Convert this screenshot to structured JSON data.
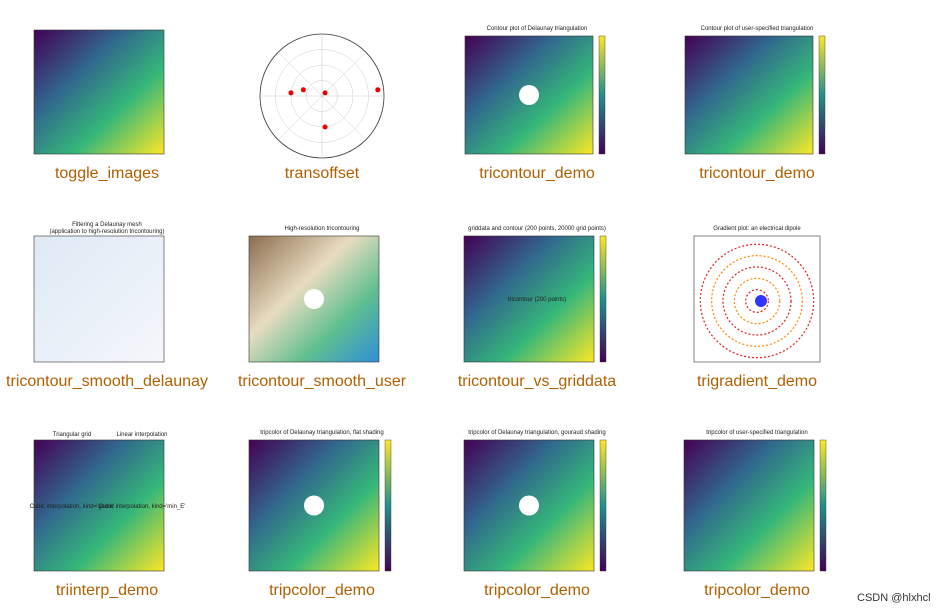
{
  "gallery": {
    "items": [
      {
        "caption": "toggle_images"
      },
      {
        "caption": "transoffset"
      },
      {
        "caption": "tricontour_demo",
        "titles": [
          "Contour plot of Delaunay triangulation"
        ]
      },
      {
        "caption": "tricontour_demo",
        "titles": [
          "Contour plot of user-specified triangulation"
        ]
      },
      {
        "caption": "tricontour_smooth_delaunay",
        "titles": [
          "Filtering a Delaunay mesh",
          "(application to high-resolution tricontouring)"
        ]
      },
      {
        "caption": "tricontour_smooth_user",
        "titles": [
          "High-resolution tricontouring"
        ]
      },
      {
        "caption": "tricontour_vs_griddata",
        "titles": [
          "griddata and contour (200 points, 20000 grid points)",
          "tricontour (200 points)"
        ]
      },
      {
        "caption": "trigradient_demo",
        "titles": [
          "Gradient plot: an electrical dipole"
        ]
      },
      {
        "caption": "triinterp_demo",
        "titles": [
          "Triangular grid",
          "Linear interpolation",
          "Cubic interpolation, kind='geom'",
          "Cubic interpolation, kind='min_E'"
        ]
      },
      {
        "caption": "tripcolor_demo",
        "titles": [
          "tripcolor of Delaunay triangulation, flat shading"
        ]
      },
      {
        "caption": "tripcolor_demo",
        "titles": [
          "tripcolor of Delaunay triangulation, gouraud shading"
        ]
      },
      {
        "caption": "tripcolor_demo",
        "titles": [
          "tripcolor of user-specified triangulation"
        ]
      }
    ]
  },
  "watermark": "CSDN @hlxhcl"
}
